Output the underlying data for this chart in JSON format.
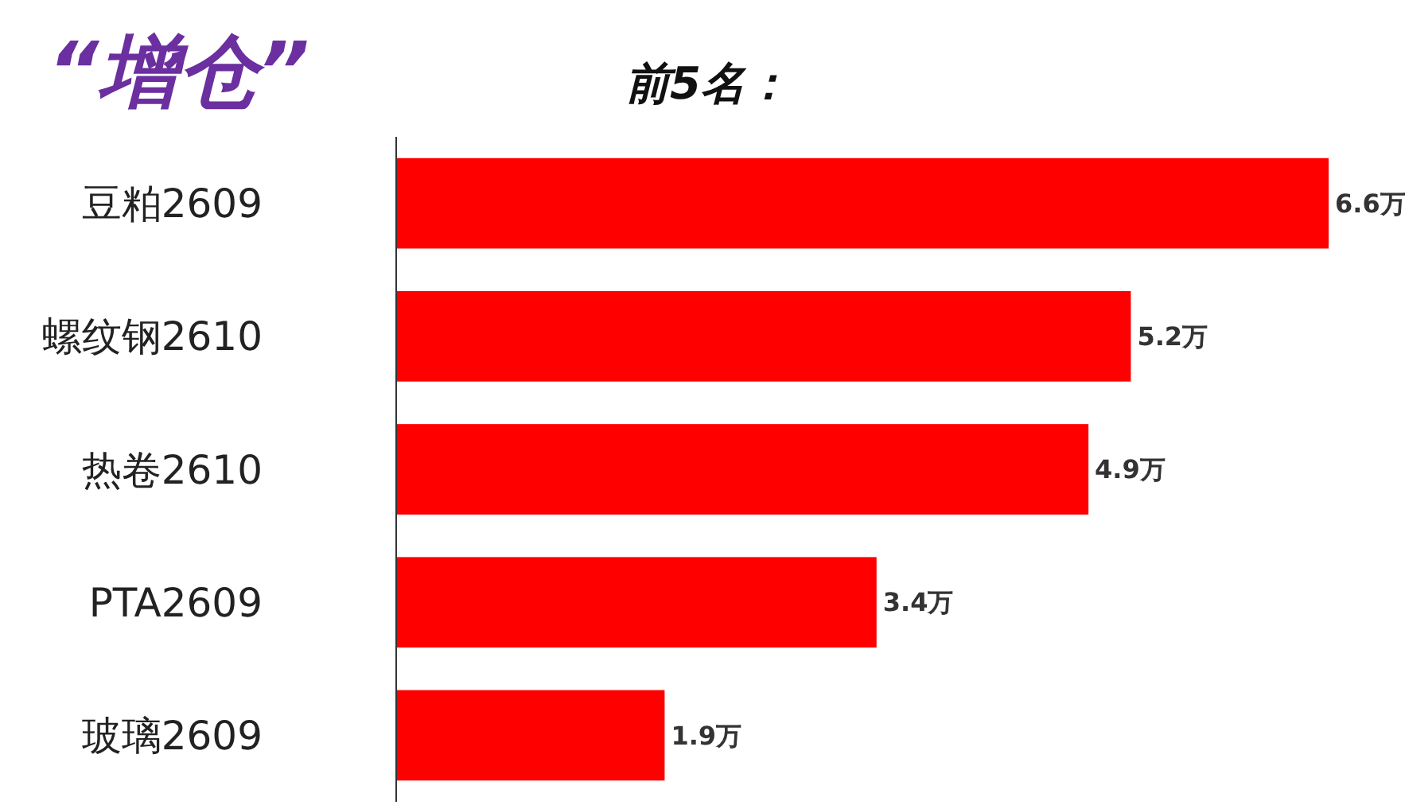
{
  "chart_data": {
    "type": "bar",
    "orientation": "horizontal",
    "title": "“增仓”",
    "subtitle": "前5名：",
    "categories": [
      "豆粕2609",
      "螺纹钢2610",
      "热卷2610",
      "PTA2609",
      "玻璃2609"
    ],
    "values": [
      6.6,
      5.2,
      4.9,
      3.4,
      1.9
    ],
    "value_labels": [
      "6.6万",
      "5.2万",
      "4.9万",
      "3.4万",
      "1.9万"
    ],
    "color": "#ff0000"
  }
}
